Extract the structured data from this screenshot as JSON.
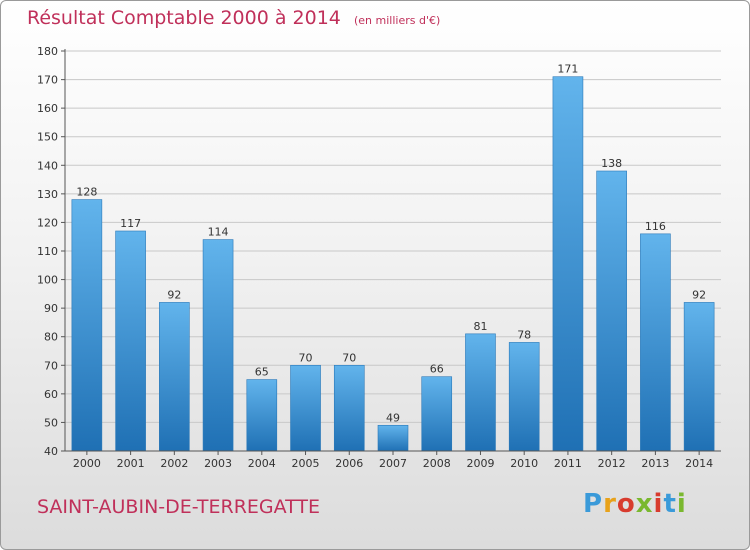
{
  "header": {
    "title": "Résultat Comptable 2000 à 2014",
    "unit": "(en milliers d'€)"
  },
  "commune": "SAINT-AUBIN-DE-TERREGATTE",
  "logo": {
    "text": "Proxiti",
    "colors": [
      "#3a9ad9",
      "#e8a21a",
      "#d83b2e",
      "#7ab82f",
      "#d83b2e",
      "#3a9ad9",
      "#7ab82f"
    ]
  },
  "colors": {
    "title": "#c0305a",
    "bar_light": "#62b4ec",
    "bar_dark": "#1f70b4",
    "axis": "#555555",
    "grid": "#c8c8c8"
  },
  "chart_data": {
    "type": "bar",
    "title": "Résultat Comptable 2000 à 2014",
    "subtitle": "(en milliers d'€)",
    "categories": [
      "2000",
      "2001",
      "2002",
      "2003",
      "2004",
      "2005",
      "2006",
      "2007",
      "2008",
      "2009",
      "2010",
      "2011",
      "2012",
      "2013",
      "2014"
    ],
    "values": [
      128,
      117,
      92,
      114,
      65,
      70,
      70,
      49,
      66,
      81,
      78,
      171,
      138,
      116,
      92
    ],
    "ylim": [
      40,
      180
    ],
    "yticks": [
      40,
      50,
      60,
      70,
      80,
      90,
      100,
      110,
      120,
      130,
      140,
      150,
      160,
      170,
      180
    ],
    "grid": "horizontal",
    "data_labels": true
  }
}
